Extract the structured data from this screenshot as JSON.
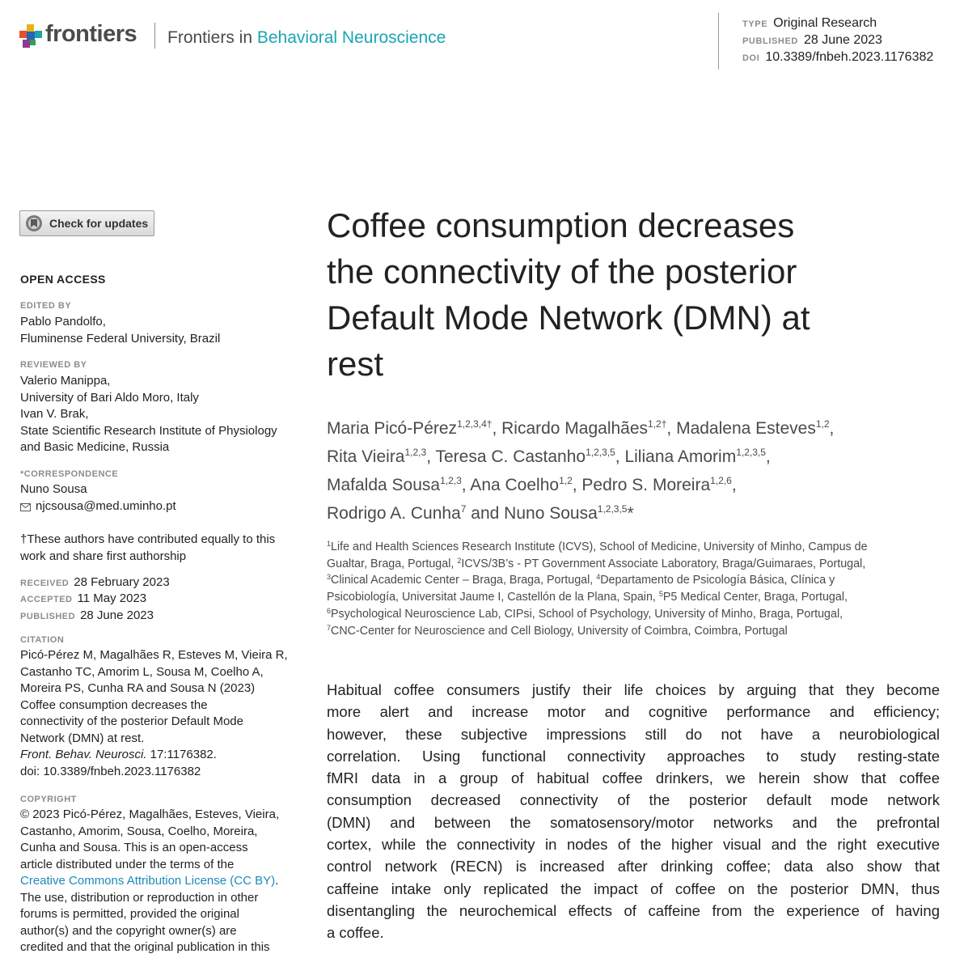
{
  "header": {
    "brand": "frontiers",
    "journal_prefix": "Frontiers in",
    "journal_name": "Behavioral Neuroscience",
    "type_label": "TYPE",
    "type_value": "Original Research",
    "published_label": "PUBLISHED",
    "published_value": "28 June 2023",
    "doi_label": "DOI",
    "doi_value": "10.3389/fnbeh.2023.1176382",
    "logo_colors": [
      "#e8b414",
      "#e4502b",
      "#2a64b0",
      "#1ba5a8",
      "#8e3b8c"
    ]
  },
  "sidebar": {
    "check_updates": "Check for updates",
    "open_access": "OPEN ACCESS",
    "edited_by_label": "EDITED BY",
    "edited_by": [
      "Pablo Pandolfo,",
      "Fluminense Federal University, Brazil"
    ],
    "reviewed_by_label": "REVIEWED BY",
    "reviewed_by": [
      "Valerio Manippa,",
      "University of Bari Aldo Moro, Italy",
      "Ivan V. Brak,",
      "State Scientific Research Institute of Physiology",
      "and Basic Medicine, Russia"
    ],
    "correspondence_label": "*CORRESPONDENCE",
    "correspondence_name": "Nuno Sousa",
    "correspondence_email": "njcsousa@med.uminho.pt",
    "equal_note": [
      "†These authors have contributed equally to this",
      "work and share first authorship"
    ],
    "received_label": "RECEIVED",
    "received": "28 February 2023",
    "accepted_label": "ACCEPTED",
    "accepted": "11 May 2023",
    "published_label": "PUBLISHED",
    "published": "28 June 2023",
    "citation_label": "CITATION",
    "citation": [
      "Picó-Pérez M, Magalhães R, Esteves M, Vieira R,",
      "Castanho TC, Amorim L, Sousa M, Coelho A,",
      "Moreira PS, Cunha RA and Sousa N (2023)",
      "Coffee consumption decreases the",
      "connectivity of the posterior Default Mode",
      "Network (DMN) at rest."
    ],
    "citation_journal": "Front. Behav. Neurosci.",
    "citation_volume": " 17:1176382.",
    "citation_doi": "doi: 10.3389/fnbeh.2023.1176382",
    "copyright_label": "COPYRIGHT",
    "copyright": [
      "© 2023  Picó-Pérez, Magalhães, Esteves, Vieira,",
      "Castanho, Amorim, Sousa, Coelho, Moreira,",
      "Cunha and Sousa. This is an open-access",
      "article distributed under the terms of the"
    ],
    "license_link": "Creative Commons Attribution License (CC BY)",
    "license_after": ".",
    "copyright_rest": [
      "The use, distribution or reproduction in other",
      "forums is permitted, provided the original",
      "author(s) and the copyright owner(s) are",
      "credited and that the original publication in this"
    ]
  },
  "article": {
    "title_lines": [
      "Coffee consumption decreases",
      "the connectivity of the posterior",
      "Default Mode Network (DMN) at",
      "rest"
    ],
    "authors": {
      "a1": "Maria Picó-Pérez",
      "a1s": "1,2,3,4†",
      "a2": ", Ricardo Magalhães",
      "a2s": "1,2†",
      "a3": ", Madalena Esteves",
      "a3s": "1,2",
      "a3e": ",",
      "a4": "Rita Vieira",
      "a4s": "1,2,3",
      "a5": ", Teresa C. Castanho",
      "a5s": "1,2,3,5",
      "a6": ", Liliana Amorim",
      "a6s": "1,2,3,5",
      "a6e": ",",
      "a7": "Mafalda Sousa",
      "a7s": "1,2,3",
      "a8": ", Ana Coelho",
      "a8s": "1,2",
      "a9": ", Pedro S. Moreira",
      "a9s": "1,2,6",
      "a9e": ",",
      "a10": "Rodrigo A. Cunha",
      "a10s": "7",
      "a11": " and Nuno Sousa",
      "a11s": "1,2,3,5",
      "a11e": "*"
    },
    "affiliations": {
      "s1": "1",
      "t1": "Life and Health Sciences Research Institute (ICVS), School of Medicine, University of Minho, Campus de",
      "t1b": "Gualtar, Braga, Portugal, ",
      "s2": "2",
      "t2": "ICVS/3B’s - PT Government Associate Laboratory, Braga/Guimaraes, Portugal,",
      "s3": "3",
      "t3": "Clinical Academic Center – Braga, Braga, Portugal, ",
      "s4": "4",
      "t4": "Departamento de Psicología Básica, Clínica y",
      "t4b": "Psicobiología, Universitat Jaume I, Castellón de la Plana, Spain, ",
      "s5": "5",
      "t5": "P5 Medical Center, Braga, Portugal,",
      "s6": "6",
      "t6": "Psychological Neuroscience Lab, CIPsi, School of Psychology, University of Minho, Braga, Portugal,",
      "s7": "7",
      "t7": "CNC-Center for Neuroscience and Cell Biology, University of Coimbra, Coimbra, Portugal"
    },
    "abstract_lines": [
      "Habitual coffee consumers justify their life choices by arguing that they become",
      "more alert and increase motor and cognitive performance and efficiency;",
      "however, these subjective impressions still do not have a neurobiological",
      "correlation. Using functional connectivity approaches to study resting-state",
      "fMRI data in a group of habitual coffee drinkers, we herein show that coffee",
      "consumption decreased connectivity of the posterior default mode network",
      "(DMN) and between the somatosensory/motor networks and the prefrontal",
      "cortex, while the connectivity in nodes of the higher visual and the right executive",
      "control network (RECN) is increased after drinking coffee; data also show that",
      "caffeine intake only replicated the impact of coffee on the posterior DMN, thus",
      "disentangling the neurochemical effects of caffeine from the experience of having",
      "a coffee."
    ]
  }
}
